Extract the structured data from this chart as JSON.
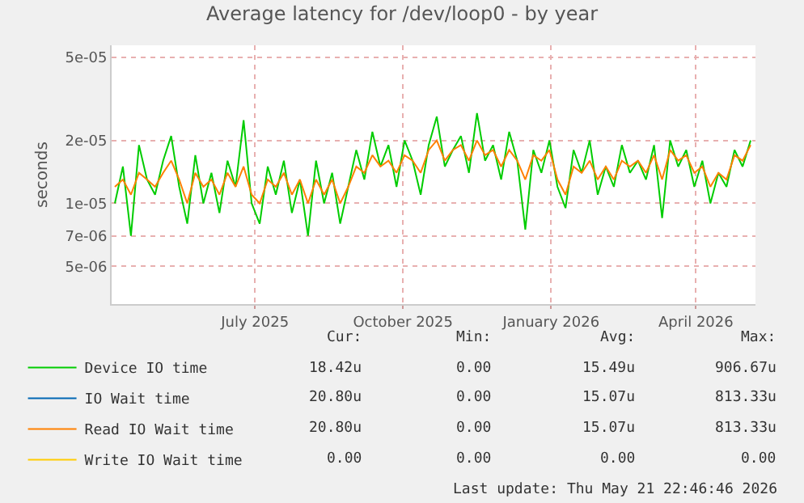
{
  "chart_data": {
    "type": "line",
    "title": "Average latency for /dev/loop0 - by year",
    "ylabel": "seconds",
    "log": "y",
    "grid": true,
    "legend": "bottom",
    "marker": "none",
    "line_style": "solid",
    "xlim": [
      "2025-04-03",
      "2026-05-08"
    ],
    "xticks": [
      {
        "value": "2025-07-01",
        "label": "July 2025"
      },
      {
        "value": "2025-10-01",
        "label": "October 2025"
      },
      {
        "value": "2026-01-01",
        "label": "January 2026"
      },
      {
        "value": "2026-04-01",
        "label": "April 2026"
      }
    ],
    "ylim": [
      3.3e-06,
      5.7e-05
    ],
    "yticks": [
      {
        "value": 5e-06,
        "label": "5e-06"
      },
      {
        "value": 7e-06,
        "label": "7e-06"
      },
      {
        "value": 1e-05,
        "label": "1e-05"
      },
      {
        "value": 2e-05,
        "label": "2e-05"
      },
      {
        "value": 5e-05,
        "label": "5e-05"
      }
    ],
    "x": [
      "2025-04-05",
      "2025-04-10",
      "2025-04-15",
      "2025-04-20",
      "2025-04-25",
      "2025-04-30",
      "2025-05-05",
      "2025-05-10",
      "2025-05-15",
      "2025-05-20",
      "2025-05-25",
      "2025-05-30",
      "2025-06-04",
      "2025-06-09",
      "2025-06-14",
      "2025-06-19",
      "2025-06-24",
      "2025-06-29",
      "2025-07-04",
      "2025-07-09",
      "2025-07-14",
      "2025-07-19",
      "2025-07-24",
      "2025-07-29",
      "2025-08-03",
      "2025-08-08",
      "2025-08-13",
      "2025-08-18",
      "2025-08-23",
      "2025-08-28",
      "2025-09-02",
      "2025-09-07",
      "2025-09-12",
      "2025-09-17",
      "2025-09-22",
      "2025-09-27",
      "2025-10-02",
      "2025-10-07",
      "2025-10-12",
      "2025-10-17",
      "2025-10-22",
      "2025-10-27",
      "2025-11-01",
      "2025-11-06",
      "2025-11-11",
      "2025-11-16",
      "2025-11-21",
      "2025-11-26",
      "2025-12-01",
      "2025-12-06",
      "2025-12-11",
      "2025-12-16",
      "2025-12-21",
      "2025-12-26",
      "2025-12-31",
      "2026-01-05",
      "2026-01-10",
      "2026-01-15",
      "2026-01-20",
      "2026-01-25",
      "2026-01-30",
      "2026-02-04",
      "2026-02-09",
      "2026-02-14",
      "2026-02-19",
      "2026-02-24",
      "2026-03-01",
      "2026-03-06",
      "2026-03-11",
      "2026-03-16",
      "2026-03-21",
      "2026-03-26",
      "2026-03-31",
      "2026-04-05",
      "2026-04-10",
      "2026-04-15",
      "2026-04-20",
      "2026-04-25",
      "2026-04-30",
      "2026-05-05"
    ],
    "series": [
      {
        "name": "Device IO time",
        "color": "#00cc00",
        "values": [
          1e-05,
          1.5e-05,
          7e-06,
          1.9e-05,
          1.3e-05,
          1.1e-05,
          1.6e-05,
          2.1e-05,
          1.2e-05,
          8e-06,
          1.7e-05,
          1e-05,
          1.4e-05,
          9e-06,
          1.6e-05,
          1.2e-05,
          2.5e-05,
          1e-05,
          8e-06,
          1.5e-05,
          1.1e-05,
          1.6e-05,
          9e-06,
          1.3e-05,
          7e-06,
          1.6e-05,
          1e-05,
          1.4e-05,
          8e-06,
          1.2e-05,
          1.8e-05,
          1.3e-05,
          2.2e-05,
          1.5e-05,
          1.9e-05,
          1.2e-05,
          2e-05,
          1.6e-05,
          1.1e-05,
          1.9e-05,
          2.6e-05,
          1.5e-05,
          1.8e-05,
          2.1e-05,
          1.4e-05,
          2.7e-05,
          1.6e-05,
          1.9e-05,
          1.3e-05,
          2.2e-05,
          1.6e-05,
          7.5e-06,
          1.8e-05,
          1.4e-05,
          2e-05,
          1.2e-05,
          9.5e-06,
          1.8e-05,
          1.4e-05,
          2e-05,
          1.1e-05,
          1.5e-05,
          1.2e-05,
          1.9e-05,
          1.4e-05,
          1.6e-05,
          1.3e-05,
          1.9e-05,
          8.5e-06,
          2e-05,
          1.5e-05,
          1.8e-05,
          1.2e-05,
          1.6e-05,
          1e-05,
          1.4e-05,
          1.2e-05,
          1.8e-05,
          1.5e-05,
          2e-05
        ]
      },
      {
        "name": "IO Wait time",
        "color": "#0066b3",
        "values": [
          null,
          null,
          null,
          null,
          null,
          null,
          null,
          null,
          null,
          null,
          null,
          null,
          null,
          null,
          null,
          null,
          null,
          null,
          null,
          null,
          null,
          null,
          null,
          null,
          null,
          null,
          null,
          null,
          null,
          null,
          null,
          null,
          null,
          null,
          null,
          null,
          null,
          null,
          null,
          null,
          null,
          null,
          null,
          null,
          null,
          null,
          null,
          null,
          null,
          null,
          null,
          null,
          null,
          null,
          null,
          null,
          null,
          null,
          null,
          null,
          null,
          null,
          null,
          null,
          null,
          null,
          null,
          null,
          null,
          null,
          null,
          null,
          null,
          null,
          null,
          null,
          null,
          null,
          null,
          null
        ]
      },
      {
        "name": "Read IO Wait time",
        "color": "#ff8000",
        "values": [
          1.2e-05,
          1.3e-05,
          1.1e-05,
          1.4e-05,
          1.3e-05,
          1.2e-05,
          1.4e-05,
          1.6e-05,
          1.3e-05,
          1e-05,
          1.4e-05,
          1.2e-05,
          1.3e-05,
          1.1e-05,
          1.4e-05,
          1.2e-05,
          1.5e-05,
          1.1e-05,
          1e-05,
          1.3e-05,
          1.2e-05,
          1.4e-05,
          1.1e-05,
          1.3e-05,
          1e-05,
          1.3e-05,
          1.1e-05,
          1.3e-05,
          1e-05,
          1.2e-05,
          1.5e-05,
          1.4e-05,
          1.7e-05,
          1.5e-05,
          1.6e-05,
          1.4e-05,
          1.7e-05,
          1.6e-05,
          1.4e-05,
          1.8e-05,
          2e-05,
          1.6e-05,
          1.8e-05,
          1.9e-05,
          1.6e-05,
          2e-05,
          1.7e-05,
          1.8e-05,
          1.5e-05,
          1.8e-05,
          1.6e-05,
          1.3e-05,
          1.7e-05,
          1.6e-05,
          1.8e-05,
          1.3e-05,
          1.1e-05,
          1.5e-05,
          1.4e-05,
          1.6e-05,
          1.3e-05,
          1.5e-05,
          1.3e-05,
          1.6e-05,
          1.5e-05,
          1.6e-05,
          1.4e-05,
          1.7e-05,
          1.3e-05,
          1.8e-05,
          1.6e-05,
          1.7e-05,
          1.4e-05,
          1.5e-05,
          1.2e-05,
          1.4e-05,
          1.3e-05,
          1.7e-05,
          1.6e-05,
          1.9e-05
        ]
      },
      {
        "name": "Write IO Wait time",
        "color": "#ffcc00",
        "values": [
          null,
          null,
          null,
          null,
          null,
          null,
          null,
          null,
          null,
          null,
          null,
          null,
          null,
          null,
          null,
          null,
          null,
          null,
          null,
          null,
          null,
          null,
          null,
          null,
          null,
          null,
          null,
          null,
          null,
          null,
          null,
          null,
          null,
          null,
          null,
          null,
          null,
          null,
          null,
          null,
          null,
          null,
          null,
          null,
          null,
          null,
          null,
          null,
          null,
          null,
          null,
          null,
          null,
          null,
          null,
          null,
          null,
          null,
          null,
          null,
          null,
          null,
          null,
          null,
          null,
          null,
          null,
          null,
          null,
          null,
          null,
          null,
          null,
          null,
          null,
          null,
          null,
          null,
          null,
          null
        ]
      }
    ],
    "annotations": [
      "Cur:",
      "Min:",
      "Avg:",
      "Max:",
      "18.42u",
      "0.00",
      "15.49u",
      "906.67u",
      "20.80u",
      "0.00",
      "15.07u",
      "813.33u",
      "20.80u",
      "0.00",
      "15.07u",
      "813.33u",
      "0.00",
      "0.00",
      "0.00",
      "0.00",
      "Last update: Thu May 21 22:46:46 2026"
    ]
  }
}
